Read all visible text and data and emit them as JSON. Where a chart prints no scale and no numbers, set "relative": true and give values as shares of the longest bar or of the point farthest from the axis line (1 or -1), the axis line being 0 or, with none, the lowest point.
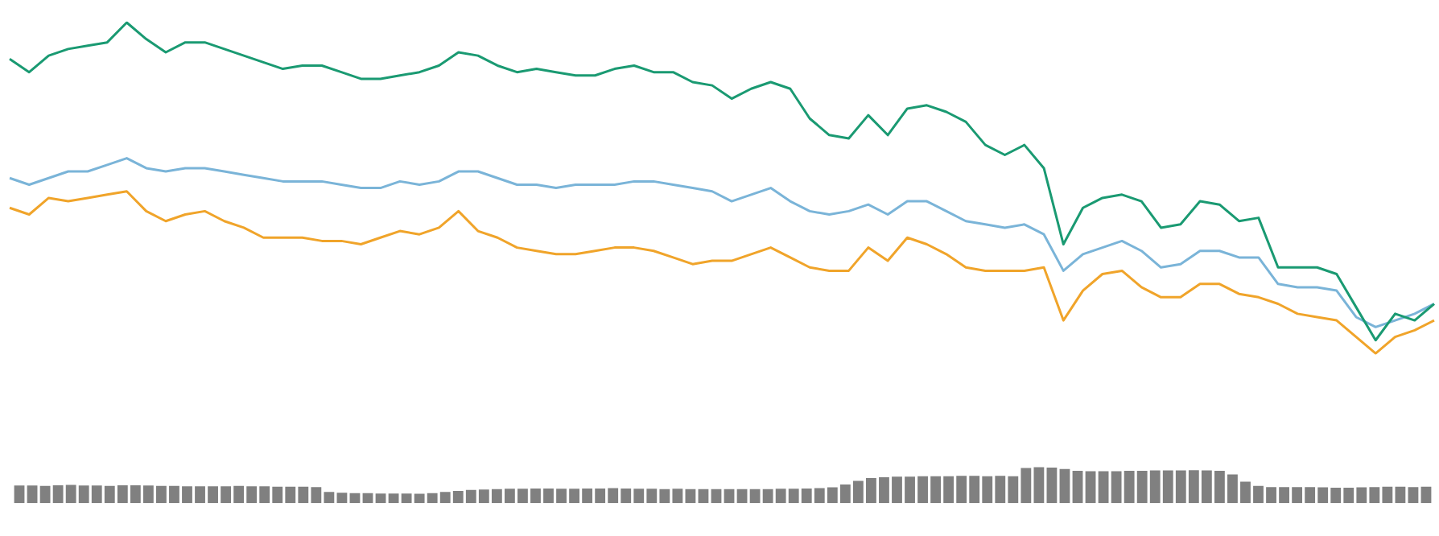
{
  "chart_data": [
    {
      "type": "line",
      "relative": true,
      "marker": "none",
      "line_style": "solid",
      "categories": [
        null,
        null,
        null,
        null,
        null,
        null,
        null,
        null,
        null,
        null,
        null,
        null,
        null,
        null,
        null,
        null,
        null,
        null,
        null,
        null,
        null,
        null,
        null,
        null,
        null,
        null,
        null,
        null,
        null,
        null,
        null,
        null,
        null,
        null,
        null,
        null,
        null,
        null,
        null,
        null,
        null,
        null,
        null,
        null,
        null,
        null,
        null,
        null,
        null,
        null,
        null,
        null,
        null,
        null,
        null,
        null,
        null,
        null,
        null,
        null,
        null,
        null,
        null,
        null,
        null,
        null,
        null,
        null,
        null,
        null,
        null,
        null,
        null,
        null
      ],
      "series": [
        {
          "color": "#1a9a72",
          "values": [
            0.89,
            0.85,
            0.9,
            0.92,
            0.93,
            0.94,
            1,
            0.95,
            0.91,
            0.94,
            0.94,
            0.92,
            0.9,
            0.88,
            0.86,
            0.87,
            0.87,
            0.85,
            0.83,
            0.83,
            0.84,
            0.85,
            0.87,
            0.91,
            0.9,
            0.87,
            0.85,
            0.86,
            0.85,
            0.84,
            0.84,
            0.86,
            0.87,
            0.85,
            0.85,
            0.82,
            0.81,
            0.77,
            0.8,
            0.82,
            0.8,
            0.71,
            0.66,
            0.65,
            0.72,
            0.66,
            0.74,
            0.75,
            0.73,
            0.7,
            0.63,
            0.6,
            0.63,
            0.56,
            0.33,
            0.44,
            0.47,
            0.48,
            0.46,
            0.38,
            0.39,
            0.46,
            0.45,
            0.4,
            0.41,
            0.26,
            0.26,
            0.26,
            0.24,
            0.14,
            0.04,
            0.12,
            0.1,
            0.15
          ]
        },
        {
          "color": "#7ab4d8",
          "values": [
            0.53,
            0.51,
            0.53,
            0.55,
            0.55,
            0.57,
            0.59,
            0.56,
            0.55,
            0.56,
            0.56,
            0.55,
            0.54,
            0.53,
            0.52,
            0.52,
            0.52,
            0.51,
            0.5,
            0.5,
            0.52,
            0.51,
            0.52,
            0.55,
            0.55,
            0.53,
            0.51,
            0.51,
            0.5,
            0.51,
            0.51,
            0.51,
            0.52,
            0.52,
            0.51,
            0.5,
            0.49,
            0.46,
            0.48,
            0.5,
            0.46,
            0.43,
            0.42,
            0.43,
            0.45,
            0.42,
            0.46,
            0.46,
            0.43,
            0.4,
            0.39,
            0.38,
            0.39,
            0.36,
            0.25,
            0.3,
            0.32,
            0.34,
            0.31,
            0.26,
            0.27,
            0.31,
            0.31,
            0.29,
            0.29,
            0.21,
            0.2,
            0.2,
            0.19,
            0.11,
            0.08,
            0.1,
            0.12,
            0.15
          ]
        },
        {
          "color": "#f0a42a",
          "values": [
            0.44,
            0.42,
            0.47,
            0.46,
            0.47,
            0.48,
            0.49,
            0.43,
            0.4,
            0.42,
            0.43,
            0.4,
            0.38,
            0.35,
            0.35,
            0.35,
            0.34,
            0.34,
            0.33,
            0.35,
            0.37,
            0.36,
            0.38,
            0.43,
            0.37,
            0.35,
            0.32,
            0.31,
            0.3,
            0.3,
            0.31,
            0.32,
            0.32,
            0.31,
            0.29,
            0.27,
            0.28,
            0.28,
            0.3,
            0.32,
            0.29,
            0.26,
            0.25,
            0.25,
            0.32,
            0.28,
            0.35,
            0.33,
            0.3,
            0.26,
            0.25,
            0.25,
            0.25,
            0.26,
            0.1,
            0.19,
            0.24,
            0.25,
            0.2,
            0.17,
            0.17,
            0.21,
            0.21,
            0.18,
            0.17,
            0.15,
            0.12,
            0.11,
            0.1,
            0.05,
            0,
            0.05,
            0.07,
            0.1
          ]
        }
      ]
    },
    {
      "type": "bar",
      "relative": true,
      "color": "#808080",
      "categories": [
        null,
        null,
        null,
        null,
        null,
        null,
        null,
        null,
        null,
        null,
        null,
        null,
        null,
        null,
        null,
        null,
        null,
        null,
        null,
        null,
        null,
        null,
        null,
        null,
        null,
        null,
        null,
        null,
        null,
        null,
        null,
        null,
        null,
        null,
        null,
        null,
        null,
        null,
        null,
        null,
        null,
        null,
        null,
        null,
        null,
        null,
        null,
        null,
        null,
        null,
        null,
        null,
        null,
        null,
        null,
        null,
        null,
        null,
        null,
        null,
        null,
        null,
        null,
        null,
        null,
        null,
        null,
        null,
        null,
        null,
        null,
        null,
        null,
        null,
        null,
        null,
        null,
        null,
        null,
        null,
        null,
        null,
        null,
        null,
        null,
        null,
        null,
        null,
        null,
        null,
        null,
        null,
        null,
        null,
        null,
        null,
        null,
        null,
        null,
        null,
        null,
        null,
        null,
        null,
        null,
        null,
        null,
        null,
        null,
        null
      ],
      "values": [
        0.49,
        0.49,
        0.48,
        0.5,
        0.51,
        0.49,
        0.49,
        0.48,
        0.5,
        0.5,
        0.49,
        0.48,
        0.48,
        0.47,
        0.47,
        0.47,
        0.47,
        0.48,
        0.47,
        0.47,
        0.46,
        0.46,
        0.46,
        0.45,
        0.31,
        0.29,
        0.28,
        0.28,
        0.27,
        0.27,
        0.27,
        0.26,
        0.28,
        0.31,
        0.34,
        0.37,
        0.38,
        0.39,
        0.4,
        0.4,
        0.41,
        0.41,
        0.4,
        0.4,
        0.41,
        0.41,
        0.42,
        0.41,
        0.4,
        0.4,
        0.39,
        0.4,
        0.39,
        0.39,
        0.39,
        0.39,
        0.39,
        0.39,
        0.39,
        0.4,
        0.4,
        0.41,
        0.42,
        0.44,
        0.52,
        0.62,
        0.7,
        0.72,
        0.74,
        0.74,
        0.75,
        0.75,
        0.75,
        0.76,
        0.76,
        0.75,
        0.76,
        0.75,
        0.98,
        1,
        0.99,
        0.95,
        0.9,
        0.89,
        0.89,
        0.89,
        0.9,
        0.9,
        0.91,
        0.91,
        0.91,
        0.92,
        0.91,
        0.9,
        0.8,
        0.6,
        0.48,
        0.45,
        0.45,
        0.45,
        0.45,
        0.44,
        0.43,
        0.43,
        0.44,
        0.45,
        0.46,
        0.46,
        0.45,
        0.46
      ]
    }
  ]
}
